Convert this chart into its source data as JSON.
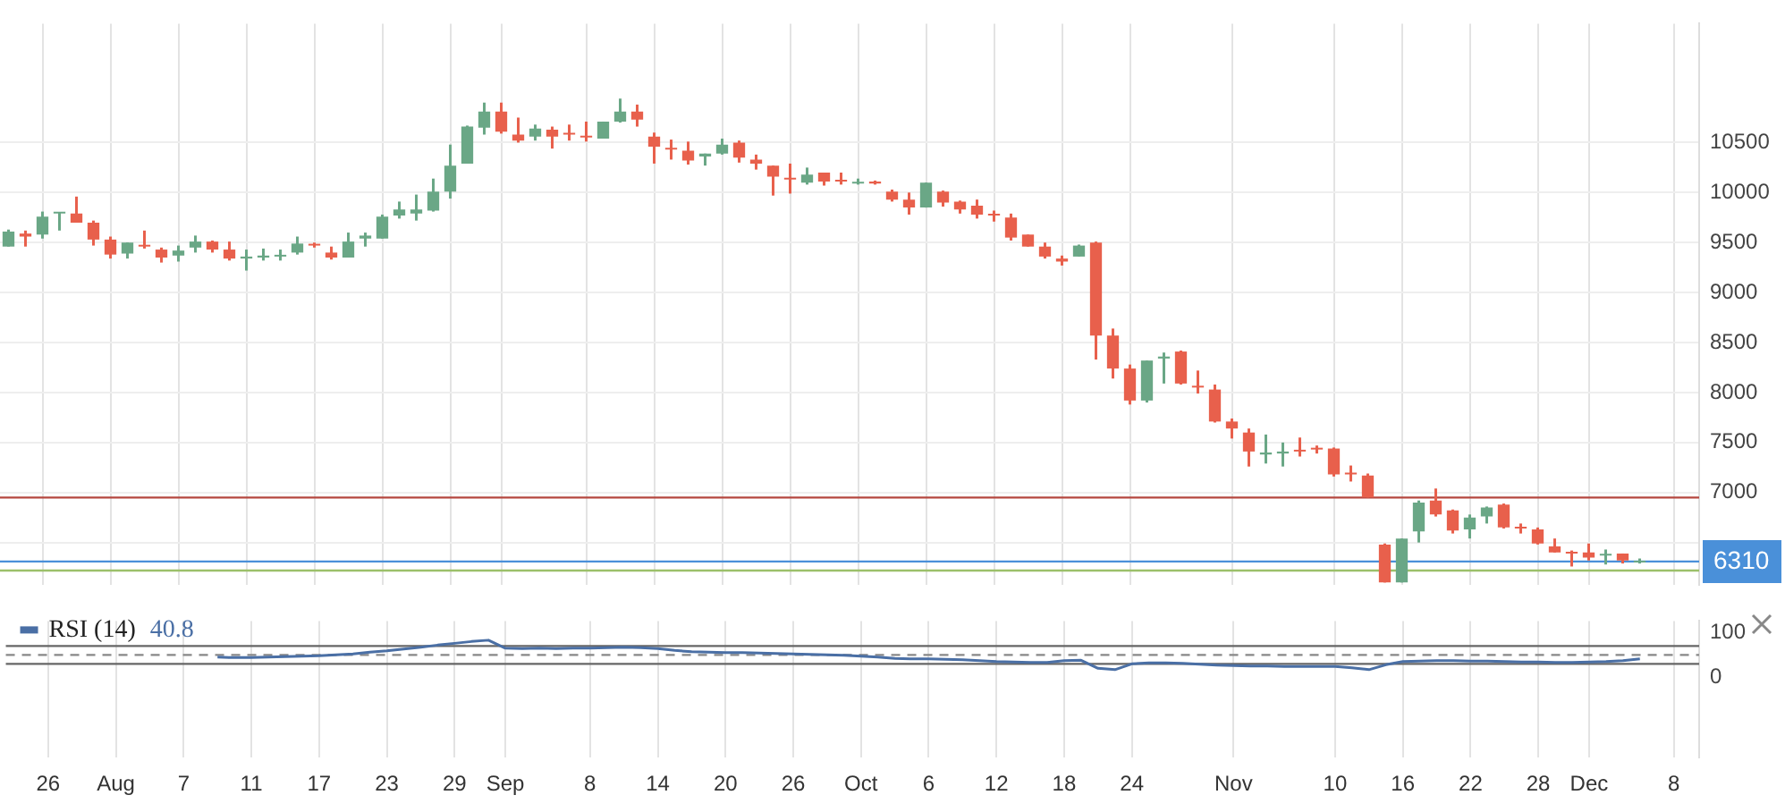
{
  "chart_data": [
    {
      "type": "candlestick",
      "tick_labels": "y",
      "grid": true,
      "categories": [
        null,
        null,
        null,
        null,
        null,
        null,
        null,
        null,
        null,
        null,
        null,
        null,
        null,
        null,
        null,
        null,
        null,
        null,
        null,
        null,
        null,
        null,
        null,
        null,
        null,
        null,
        null,
        null,
        null,
        null,
        null,
        null,
        null,
        null,
        null,
        null,
        null,
        null,
        null,
        null,
        null,
        null,
        null,
        null,
        null,
        null,
        null,
        null,
        null,
        null,
        null,
        null,
        null,
        null,
        null,
        null,
        null,
        null,
        null,
        null,
        null,
        null,
        null,
        null,
        null,
        null,
        null,
        null,
        null,
        null,
        null,
        null,
        null,
        null,
        null,
        null,
        null,
        null,
        null,
        null,
        null,
        null,
        null,
        null,
        null,
        null,
        null,
        null,
        null,
        null,
        null,
        null,
        null,
        null,
        null,
        null,
        null,
        null,
        null,
        null
      ],
      "ohlc": [
        [
          9460,
          9630,
          9460,
          9610
        ],
        [
          9590,
          9620,
          9460,
          9560
        ],
        [
          9580,
          9810,
          9540,
          9760
        ],
        [
          9790,
          9800,
          9620,
          9800
        ],
        [
          9790,
          9960,
          9700,
          9700
        ],
        [
          9700,
          9720,
          9470,
          9530
        ],
        [
          9530,
          9560,
          9340,
          9380
        ],
        [
          9390,
          9500,
          9340,
          9500
        ],
        [
          9470,
          9620,
          9440,
          9460
        ],
        [
          9430,
          9450,
          9300,
          9350
        ],
        [
          9370,
          9470,
          9310,
          9420
        ],
        [
          9450,
          9570,
          9400,
          9510
        ],
        [
          9510,
          9520,
          9400,
          9430
        ],
        [
          9430,
          9510,
          9320,
          9340
        ],
        [
          9340,
          9430,
          9220,
          9360
        ],
        [
          9350,
          9440,
          9320,
          9370
        ],
        [
          9360,
          9430,
          9320,
          9370
        ],
        [
          9400,
          9560,
          9380,
          9490
        ],
        [
          9480,
          9500,
          9450,
          9470
        ],
        [
          9400,
          9460,
          9330,
          9350
        ],
        [
          9350,
          9600,
          9350,
          9510
        ],
        [
          9540,
          9600,
          9460,
          9570
        ],
        [
          9540,
          9780,
          9540,
          9760
        ],
        [
          9770,
          9910,
          9740,
          9830
        ],
        [
          9790,
          9980,
          9720,
          9830
        ],
        [
          9820,
          10140,
          9810,
          10010
        ],
        [
          10010,
          10480,
          9940,
          10270
        ],
        [
          10290,
          10670,
          10290,
          10660
        ],
        [
          10650,
          10900,
          10580,
          10810
        ],
        [
          10810,
          10900,
          10590,
          10610
        ],
        [
          10580,
          10750,
          10500,
          10520
        ],
        [
          10560,
          10680,
          10520,
          10640
        ],
        [
          10630,
          10660,
          10440,
          10560
        ],
        [
          10590,
          10680,
          10520,
          10580
        ],
        [
          10560,
          10710,
          10510,
          10550
        ],
        [
          10540,
          10710,
          10540,
          10710
        ],
        [
          10710,
          10940,
          10700,
          10810
        ],
        [
          10810,
          10880,
          10660,
          10730
        ],
        [
          10560,
          10600,
          10290,
          10460
        ],
        [
          10440,
          10530,
          10330,
          10430
        ],
        [
          10420,
          10510,
          10280,
          10320
        ],
        [
          10360,
          10390,
          10270,
          10390
        ],
        [
          10390,
          10540,
          10380,
          10480
        ],
        [
          10500,
          10520,
          10300,
          10350
        ],
        [
          10330,
          10380,
          10230,
          10290
        ],
        [
          10270,
          10270,
          9970,
          10160
        ],
        [
          10140,
          10290,
          9990,
          10130
        ],
        [
          10100,
          10250,
          10080,
          10180
        ],
        [
          10200,
          10200,
          10070,
          10110
        ],
        [
          10120,
          10200,
          10080,
          10110
        ],
        [
          10090,
          10140,
          10080,
          10100
        ],
        [
          10110,
          10120,
          10080,
          10090
        ],
        [
          10010,
          10030,
          9910,
          9930
        ],
        [
          9930,
          10000,
          9780,
          9850
        ],
        [
          9850,
          10100,
          9850,
          10100
        ],
        [
          10010,
          10020,
          9860,
          9900
        ],
        [
          9910,
          9920,
          9790,
          9830
        ],
        [
          9870,
          9930,
          9740,
          9780
        ],
        [
          9780,
          9820,
          9710,
          9770
        ],
        [
          9750,
          9790,
          9520,
          9550
        ],
        [
          9580,
          9580,
          9460,
          9460
        ],
        [
          9460,
          9500,
          9340,
          9360
        ],
        [
          9340,
          9370,
          9270,
          9310
        ],
        [
          9360,
          9480,
          9360,
          9470
        ],
        [
          9500,
          9510,
          8330,
          8570
        ],
        [
          8570,
          8640,
          8140,
          8240
        ],
        [
          8240,
          8280,
          7880,
          7920
        ],
        [
          7920,
          8320,
          7900,
          8320
        ],
        [
          8340,
          8400,
          8090,
          8360
        ],
        [
          8410,
          8420,
          8080,
          8090
        ],
        [
          8060,
          8220,
          7990,
          8050
        ],
        [
          8030,
          8080,
          7700,
          7710
        ],
        [
          7710,
          7740,
          7540,
          7640
        ],
        [
          7600,
          7640,
          7260,
          7410
        ],
        [
          7380,
          7580,
          7290,
          7400
        ],
        [
          7390,
          7500,
          7260,
          7410
        ],
        [
          7420,
          7550,
          7360,
          7410
        ],
        [
          7440,
          7470,
          7390,
          7430
        ],
        [
          7440,
          7450,
          7160,
          7180
        ],
        [
          7190,
          7270,
          7110,
          7180
        ],
        [
          7170,
          7190,
          6950,
          6950
        ],
        [
          6480,
          6490,
          6100,
          6100
        ],
        [
          6100,
          6540,
          6100,
          6540
        ],
        [
          6610,
          6920,
          6500,
          6900
        ],
        [
          6920,
          7040,
          6760,
          6780
        ],
        [
          6820,
          6830,
          6590,
          6620
        ],
        [
          6630,
          6780,
          6540,
          6750
        ],
        [
          6760,
          6860,
          6690,
          6850
        ],
        [
          6880,
          6890,
          6640,
          6650
        ],
        [
          6650,
          6690,
          6590,
          6640
        ],
        [
          6630,
          6650,
          6480,
          6490
        ],
        [
          6460,
          6540,
          6400,
          6400
        ],
        [
          6400,
          6420,
          6260,
          6390
        ],
        [
          6400,
          6490,
          6320,
          6350
        ],
        [
          6370,
          6430,
          6280,
          6380
        ],
        [
          6390,
          6390,
          6290,
          6320
        ],
        [
          6300,
          6340,
          6290,
          6310
        ],
        null,
        null,
        null
      ],
      "colors": [
        "#6aa786",
        "#e8604c",
        "#6aa786",
        "#6aa786",
        "#e8604c",
        "#e8604c",
        "#e8604c",
        "#6aa786",
        "#e8604c",
        "#e8604c",
        "#6aa786",
        "#6aa786",
        "#e8604c",
        "#e8604c",
        "#6aa786",
        "#6aa786",
        "#6aa786",
        "#6aa786",
        "#e8604c",
        "#e8604c",
        "#6aa786",
        "#6aa786",
        "#6aa786",
        "#6aa786",
        "#6aa786",
        "#6aa786",
        "#6aa786",
        "#6aa786",
        "#6aa786",
        "#e8604c",
        "#e8604c",
        "#6aa786",
        "#e8604c",
        "#e8604c",
        "#e8604c",
        "#6aa786",
        "#6aa786",
        "#e8604c",
        "#e8604c",
        "#e8604c",
        "#e8604c",
        "#6aa786",
        "#6aa786",
        "#e8604c",
        "#e8604c",
        "#e8604c",
        "#e8604c",
        "#6aa786",
        "#e8604c",
        "#e8604c",
        "#6aa786",
        "#e8604c",
        "#e8604c",
        "#e8604c",
        "#6aa786",
        "#e8604c",
        "#e8604c",
        "#e8604c",
        "#e8604c",
        "#e8604c",
        "#e8604c",
        "#e8604c",
        "#e8604c",
        "#6aa786",
        "#e8604c",
        "#e8604c",
        "#e8604c",
        "#6aa786",
        "#6aa786",
        "#e8604c",
        "#e8604c",
        "#e8604c",
        "#e8604c",
        "#e8604c",
        "#6aa786",
        "#6aa786",
        "#e8604c",
        "#e8604c",
        "#e8604c",
        "#e8604c",
        "#e8604c",
        "#e8604c",
        "#6aa786",
        "#6aa786",
        "#e8604c",
        "#e8604c",
        "#6aa786",
        "#6aa786",
        "#e8604c",
        "#e8604c",
        "#e8604c",
        "#e8604c",
        "#e8604c",
        "#e8604c",
        "#6aa786",
        "#e8604c",
        "#6aa786",
        null,
        null,
        null
      ],
      "ylim": [
        6080,
        11690
      ],
      "yticks": [
        {
          "value": 6500,
          "label": null
        },
        7000,
        7500,
        8000,
        8500,
        9000,
        9500,
        10000,
        10500
      ],
      "ref_lines": [
        {
          "axis": "y",
          "value": 6950,
          "color": "#b5473f"
        },
        {
          "axis": "y",
          "value": 6220,
          "color": "#9cc06a"
        },
        {
          "axis": "y",
          "value": 6310,
          "label": "6310",
          "color": "#4a90d9"
        }
      ]
    },
    {
      "type": "line",
      "grid": "x",
      "legend": "top left",
      "categories": [
        null,
        null,
        "26",
        null,
        null,
        null,
        "Aug",
        null,
        null,
        null,
        "7",
        null,
        null,
        null,
        "11",
        null,
        null,
        null,
        "17",
        null,
        null,
        null,
        "23",
        null,
        null,
        null,
        "29",
        null,
        null,
        "Sep",
        null,
        null,
        null,
        null,
        "8",
        null,
        null,
        null,
        "14",
        null,
        null,
        null,
        "20",
        null,
        null,
        null,
        "26",
        null,
        null,
        null,
        "Oct",
        null,
        null,
        null,
        "6",
        null,
        null,
        null,
        "12",
        null,
        null,
        null,
        "18",
        null,
        null,
        null,
        "24",
        null,
        null,
        null,
        null,
        null,
        "Nov",
        null,
        null,
        null,
        null,
        null,
        "10",
        null,
        null,
        null,
        "16",
        null,
        null,
        null,
        "22",
        null,
        null,
        null,
        "28",
        null,
        null,
        "Dec",
        null,
        null,
        null,
        null,
        "8",
        null
      ],
      "series": [
        {
          "name": "RSI (14)",
          "color": "#4a6fa5",
          "values": [
            null,
            null,
            null,
            null,
            null,
            null,
            null,
            null,
            null,
            null,
            null,
            null,
            45,
            44,
            44,
            45,
            46,
            47,
            48,
            50,
            52,
            56,
            59,
            63,
            67,
            72,
            76,
            80,
            83,
            65,
            64,
            65,
            64,
            65,
            65,
            66,
            67,
            66,
            64,
            60,
            57,
            56,
            55,
            55,
            54,
            53,
            52,
            51,
            50,
            49,
            47,
            45,
            42,
            41,
            41,
            40,
            39,
            37,
            35,
            34,
            33,
            33,
            37,
            38,
            20,
            17,
            30,
            32,
            32,
            31,
            29,
            27,
            26,
            25,
            25,
            24,
            24,
            24,
            24,
            21,
            17,
            28,
            35,
            36,
            37,
            37,
            36,
            36,
            35,
            34,
            34,
            33,
            33,
            34,
            35,
            37,
            41,
            null,
            null,
            null
          ]
        }
      ],
      "annotations": [
        "40.8"
      ],
      "ylim": [
        -180,
        126
      ],
      "yticks": [
        0,
        100
      ],
      "ref_lines": [
        {
          "axis": "y",
          "value": 70,
          "color": "#666666",
          "line_style": "solid"
        },
        {
          "axis": "y",
          "value": 50,
          "color": "#888888",
          "line_style": "dashed"
        },
        {
          "axis": "y",
          "value": 30,
          "color": "#666666",
          "line_style": "solid"
        }
      ]
    }
  ]
}
